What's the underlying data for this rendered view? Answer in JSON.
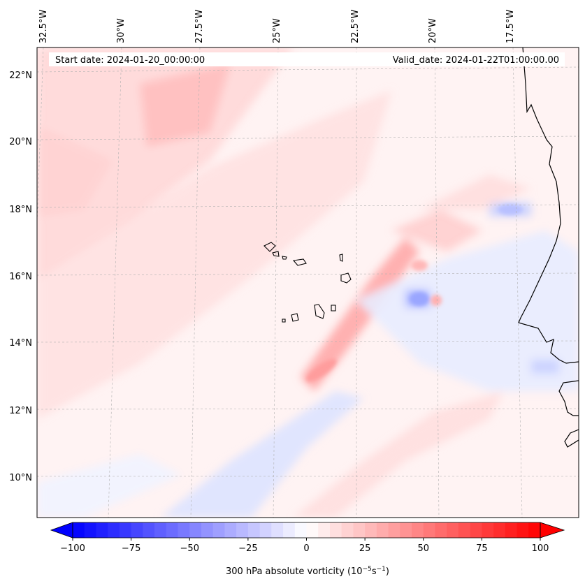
{
  "map": {
    "start_date": "Start date: 2024-01-20_00:00:00",
    "valid_date": "Valid_date: 2024-01-22T01:00:00.00",
    "lon_labels": [
      "32.5°W",
      "30°W",
      "27.5°W",
      "25°W",
      "22.5°W",
      "20°W",
      "17.5°W"
    ],
    "lat_labels": [
      "22°N",
      "20°N",
      "18°N",
      "16°N",
      "14°N",
      "12°N",
      "10°N"
    ]
  },
  "colorbar": {
    "label": "300 hPa absolute vorticity (10",
    "label_exp1": "−5",
    "label_mid": "s",
    "label_exp2": "−1",
    "label_end": ")",
    "ticks": [
      "−100",
      "−75",
      "−50",
      "−25",
      "0",
      "25",
      "50",
      "75",
      "100"
    ],
    "tick_values": [
      -100,
      -75,
      -50,
      -25,
      0,
      25,
      50,
      75,
      100
    ],
    "min": -100,
    "max": 100,
    "neg_color": "#0000ff",
    "zero_color": "#ffffff",
    "pos_color": "#ff0000"
  }
}
